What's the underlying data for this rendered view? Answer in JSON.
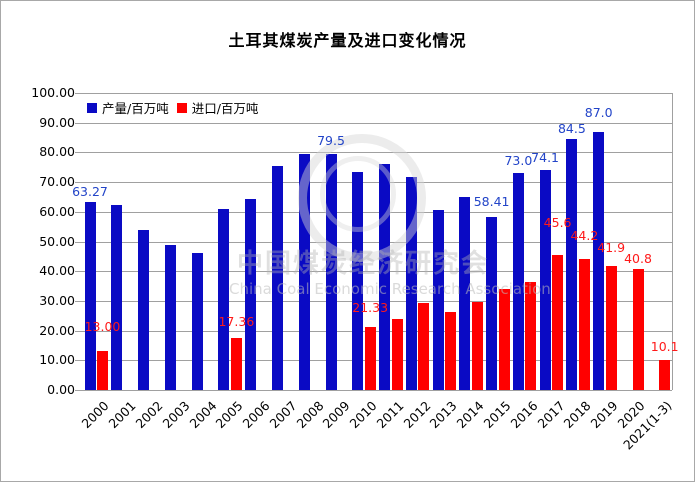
{
  "title": "土耳其煤炭产量及进口变化情况",
  "legend": {
    "production_label": "产量/百万吨",
    "imports_label": "进口/百万吨"
  },
  "watermark": {
    "text_cn": "中国煤炭经济研究会",
    "text_en": "China Coal Economic Research Association"
  },
  "colors": {
    "production": "#0a0ac4",
    "imports": "#ff0000",
    "production_label_text": "#2244c8",
    "imports_label_text": "#ff1a1a",
    "gridline": "#a0a0a0"
  },
  "y_axis_tick_labels": [
    "100.00",
    "90.00",
    "80.00",
    "70.00",
    "60.00",
    "50.00",
    "40.00",
    "30.00",
    "20.00",
    "10.00",
    "0.00"
  ],
  "chart_data": {
    "type": "bar",
    "title": "土耳其煤炭产量及进口变化情况",
    "categories": [
      "2000",
      "2001",
      "2002",
      "2003",
      "2004",
      "2005",
      "2006",
      "2007",
      "2008",
      "2009",
      "2010",
      "2011",
      "2012",
      "2013",
      "2014",
      "2015",
      "2016",
      "2017",
      "2018",
      "2019",
      "2020",
      "2021(1-3)"
    ],
    "series": [
      {
        "name": "产量/百万吨",
        "color": "#0a0ac4",
        "values": [
          63.27,
          62.4,
          54.0,
          48.7,
          46.2,
          60.9,
          64.3,
          75.5,
          79.5,
          79.5,
          73.4,
          76.1,
          71.9,
          60.5,
          65.1,
          58.41,
          73.0,
          74.1,
          84.5,
          87.0,
          null,
          null
        ],
        "point_labels": {
          "0": "63.27",
          "9": "79.5",
          "15": "58.41",
          "16": "73.0",
          "17": "74.1",
          "18": "84.5",
          "19": "87.0"
        }
      },
      {
        "name": "进口/百万吨",
        "color": "#ff0000",
        "values": [
          13.0,
          null,
          null,
          null,
          null,
          17.36,
          null,
          null,
          null,
          null,
          21.33,
          24.0,
          29.3,
          26.2,
          29.8,
          34.0,
          36.4,
          45.6,
          44.2,
          41.9,
          40.8,
          10.1
        ],
        "point_labels": {
          "0": "13.00",
          "5": "17.36",
          "10": "21.33",
          "17": "45.6",
          "18": "44.2",
          "19": "41.9",
          "20": "40.8",
          "21": "10.1"
        }
      }
    ],
    "ylabel": "",
    "xlabel": "",
    "ylim": [
      0,
      100
    ],
    "ytick_step": 10,
    "grid": true,
    "legend_position": "top-left"
  }
}
